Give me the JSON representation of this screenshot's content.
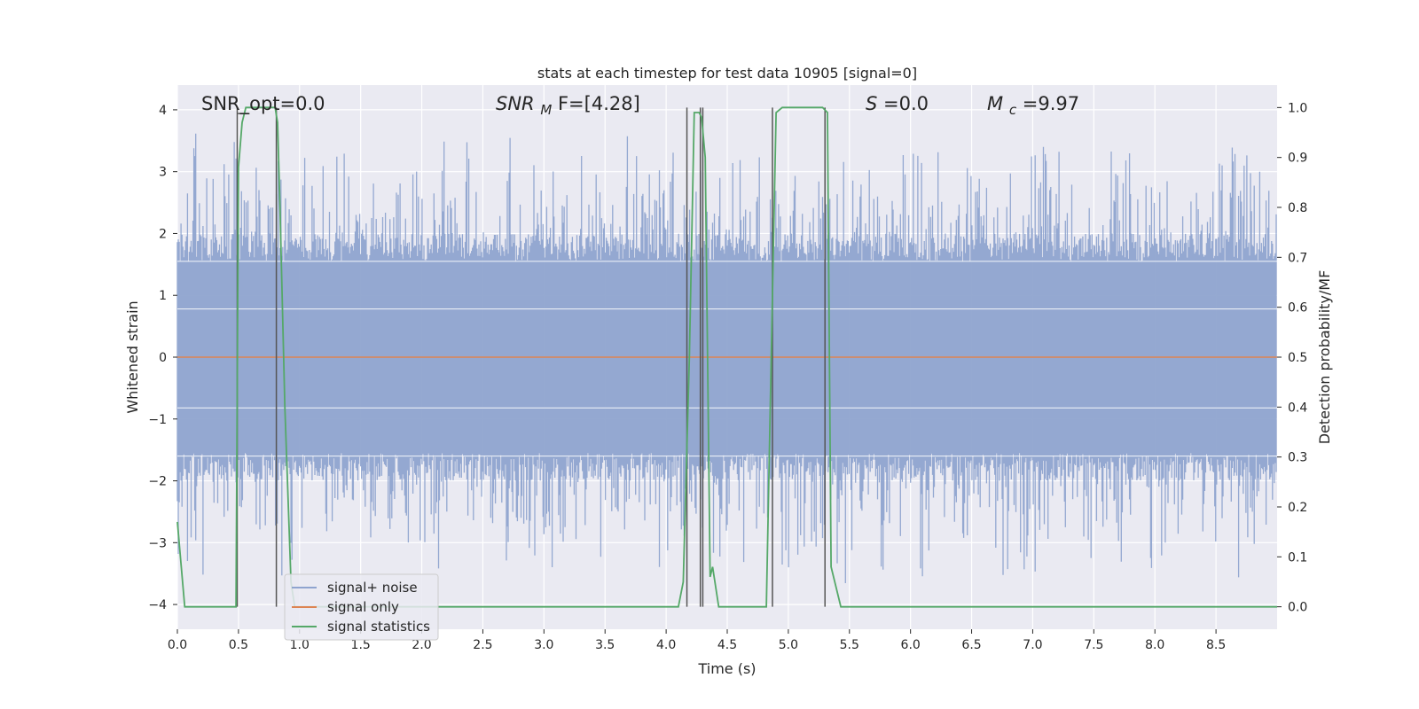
{
  "chart_data": {
    "type": "line",
    "title": "stats at each timestep for test data 10905 [signal=0]",
    "xlabel": "Time (s)",
    "ylabel": "Whitened strain",
    "y2label": "Detection probability/MF",
    "xlim": [
      0,
      9.0
    ],
    "ylim": [
      -4.4,
      4.4
    ],
    "y2lim": [
      -0.045,
      1.045
    ],
    "xticks": [
      "0.0",
      "0.5",
      "1.0",
      "1.5",
      "2.0",
      "2.5",
      "3.0",
      "3.5",
      "4.0",
      "4.5",
      "5.0",
      "5.5",
      "6.0",
      "6.5",
      "7.0",
      "7.5",
      "8.0",
      "8.5"
    ],
    "yticks": [
      "4",
      "3",
      "2",
      "1",
      "0",
      "−1",
      "−2",
      "−3",
      "−4"
    ],
    "y2ticks": [
      "1.0",
      "0.9",
      "0.8",
      "0.7",
      "0.6",
      "0.5",
      "0.4",
      "0.3",
      "0.2",
      "0.1",
      "0.0"
    ],
    "grid": true,
    "legend_position": "lower-left",
    "annotations": {
      "snr_opt": "SNR_opt=0.0",
      "snr_mf_main": "SNR",
      "snr_mf_sub": "M",
      "snr_mf_tail": "F=[4.28]",
      "s_main": "S",
      "s_tail": "=0.0",
      "mc_main": "M",
      "mc_sub": "c",
      "mc_tail": "=9.97"
    },
    "series": [
      {
        "name": "signal+ noise",
        "color": "#8fa4cf",
        "noise_amplitude_core": 1.55,
        "noise_peak": 3.7
      },
      {
        "name": "signal only",
        "color": "#dd8452",
        "values_constant": 0.0
      },
      {
        "name": "signal statistics",
        "color": "#55a868",
        "axis": "right",
        "points": [
          [
            0.0,
            0.17
          ],
          [
            0.06,
            0.0
          ],
          [
            0.12,
            0.0
          ],
          [
            0.44,
            0.0
          ],
          [
            0.48,
            0.0
          ],
          [
            0.5,
            0.88
          ],
          [
            0.53,
            0.97
          ],
          [
            0.56,
            1.0
          ],
          [
            0.8,
            1.0
          ],
          [
            0.82,
            0.97
          ],
          [
            0.84,
            0.8
          ],
          [
            0.88,
            0.4
          ],
          [
            0.93,
            0.05
          ],
          [
            0.96,
            0.0
          ],
          [
            4.1,
            0.0
          ],
          [
            4.14,
            0.05
          ],
          [
            4.19,
            0.5
          ],
          [
            4.23,
            0.99
          ],
          [
            4.27,
            0.99
          ],
          [
            4.29,
            0.98
          ],
          [
            4.32,
            0.9
          ],
          [
            4.36,
            0.06
          ],
          [
            4.38,
            0.08
          ],
          [
            4.43,
            0.0
          ],
          [
            4.7,
            0.0
          ],
          [
            4.82,
            0.0
          ],
          [
            4.86,
            0.5
          ],
          [
            4.9,
            0.99
          ],
          [
            4.95,
            1.0
          ],
          [
            5.22,
            1.0
          ],
          [
            5.28,
            1.0
          ],
          [
            5.32,
            0.99
          ],
          [
            5.35,
            0.08
          ],
          [
            5.39,
            0.04
          ],
          [
            5.43,
            0.0
          ],
          [
            9.0,
            0.0
          ]
        ]
      }
    ],
    "vertical_markers": [
      0.49,
      0.81,
      4.17,
      4.28,
      4.3,
      4.87,
      5.3
    ],
    "horizontal_markers": [
      {
        "x": [
          0.49,
          0.58
        ],
        "y": 3.94
      }
    ]
  }
}
